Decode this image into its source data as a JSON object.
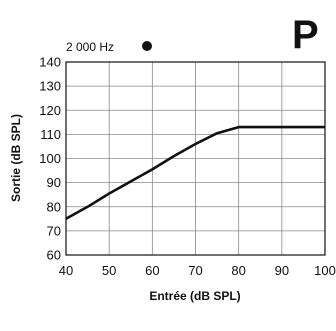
{
  "corner_label": "P",
  "chart_data": {
    "type": "line",
    "title": "",
    "legend": {
      "text": "2 000 Hz",
      "marker": "filled-circle",
      "placement": "top-left"
    },
    "xlabel": "Entrée (dB SPL)",
    "ylabel": "Sortie (dB SPL)",
    "xlim": [
      40,
      100
    ],
    "ylim": [
      60,
      140
    ],
    "xticks": [
      "40",
      "50",
      "60",
      "70",
      "80",
      "90",
      "100"
    ],
    "yticks": [
      "60",
      "70",
      "80",
      "90",
      "100",
      "110",
      "120",
      "130",
      "140"
    ],
    "grid": true,
    "series": [
      {
        "color": "#111111",
        "x": [
          40,
          45,
          50,
          55,
          60,
          65,
          70,
          75,
          80,
          85,
          90,
          95,
          100
        ],
        "y": [
          75,
          80,
          85.5,
          90.5,
          95.5,
          101,
          106,
          110.5,
          113,
          113,
          113,
          113,
          113
        ]
      }
    ]
  }
}
